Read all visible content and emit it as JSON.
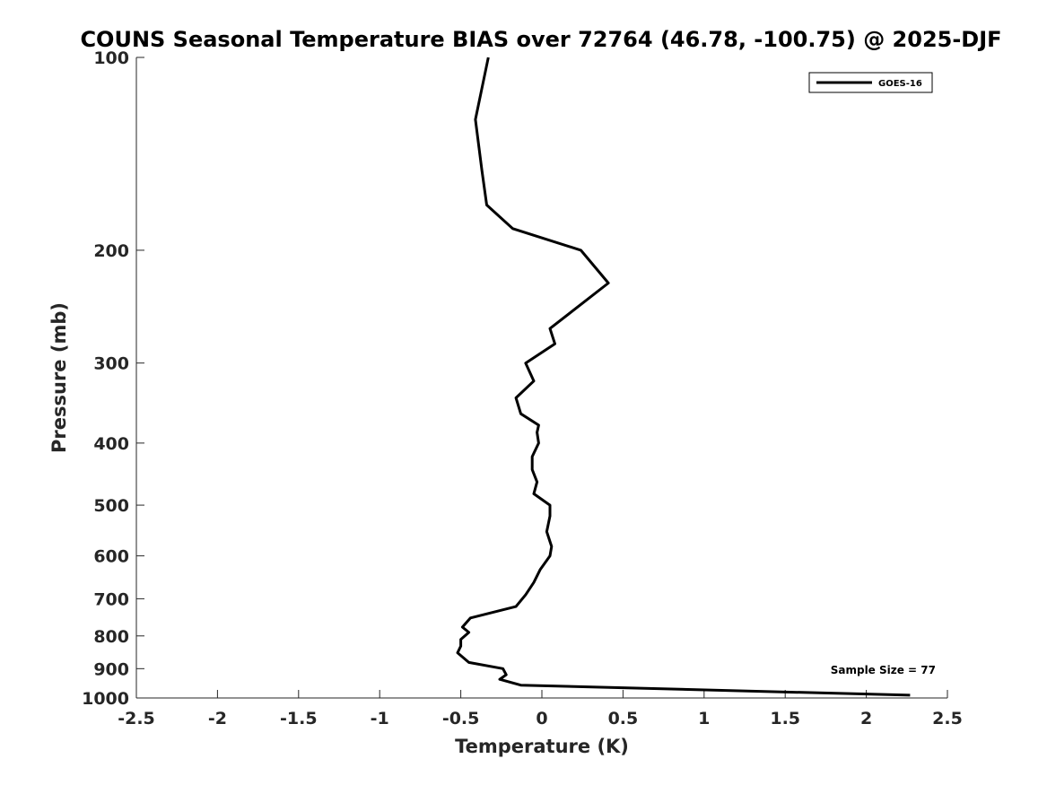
{
  "chart_data": {
    "type": "line",
    "title": "COUNS Seasonal Temperature BIAS over 72764 (46.78, -100.75) @ 2025-DJF",
    "xlabel": "Temperature (K)",
    "ylabel": "Pressure (mb)",
    "xlim": [
      -2.5,
      2.5
    ],
    "ylim": [
      100,
      1000
    ],
    "y_scale": "log",
    "y_reversed": true,
    "grid": false,
    "x_ticks": [
      -2.5,
      -2,
      -1.5,
      -1,
      -0.5,
      0,
      0.5,
      1,
      1.5,
      2,
      2.5
    ],
    "x_tick_labels": [
      "-2.5",
      "-2",
      "-1.5",
      "-1",
      "-0.5",
      "0",
      "0.5",
      "1",
      "1.5",
      "2",
      "2.5"
    ],
    "y_ticks": [
      100,
      200,
      300,
      400,
      500,
      600,
      700,
      800,
      900,
      1000
    ],
    "y_tick_labels": [
      "100",
      "200",
      "300",
      "400",
      "500",
      "600",
      "700",
      "800",
      "900",
      "1000"
    ],
    "legend": {
      "position": "top-right",
      "entries": [
        "GOES-16"
      ]
    },
    "annotation": "Sample Size = 77",
    "series": [
      {
        "name": "GOES-16",
        "color": "#000000",
        "x": [
          -0.33,
          -0.41,
          -0.37,
          -0.34,
          -0.18,
          0.24,
          0.41,
          0.05,
          0.08,
          -0.1,
          -0.05,
          -0.16,
          -0.13,
          -0.02,
          -0.03,
          -0.02,
          -0.06,
          -0.06,
          -0.03,
          -0.05,
          0.05,
          0.05,
          0.03,
          0.06,
          0.05,
          -0.01,
          -0.05,
          -0.1,
          -0.16,
          -0.44,
          -0.49,
          -0.45,
          -0.5,
          -0.5,
          -0.52,
          -0.45,
          -0.24,
          -0.22,
          -0.26,
          -0.13,
          2.27
        ],
        "y": [
          100,
          125,
          150,
          170,
          185,
          200,
          225,
          265,
          280,
          300,
          320,
          340,
          360,
          375,
          385,
          400,
          420,
          440,
          460,
          480,
          500,
          520,
          550,
          580,
          600,
          630,
          660,
          690,
          720,
          750,
          775,
          790,
          810,
          830,
          850,
          880,
          900,
          920,
          935,
          955,
          990
        ]
      }
    ]
  }
}
